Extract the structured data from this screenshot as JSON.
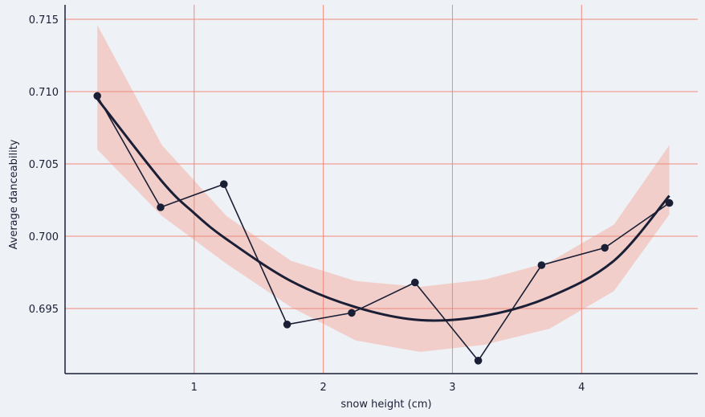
{
  "chart_data": {
    "type": "line",
    "xlabel": "snow height (cm)",
    "ylabel": "Average danceability",
    "x_ticks": [
      1,
      2,
      3,
      4
    ],
    "y_ticks": [
      0.695,
      0.7,
      0.705,
      0.71,
      0.715
    ],
    "y_tick_labels": [
      "0.695",
      "0.700",
      "0.705",
      "0.710",
      "0.715"
    ],
    "xlim": [
      0.0,
      4.9
    ],
    "ylim": [
      0.6905,
      0.716
    ],
    "grid": true,
    "series": [
      {
        "kind": "observed",
        "x": [
          0.25,
          0.74,
          1.23,
          1.72,
          2.22,
          2.71,
          3.2,
          3.69,
          4.18,
          4.68
        ],
        "y": [
          0.7097,
          0.702,
          0.7036,
          0.6939,
          0.6947,
          0.6968,
          0.6914,
          0.698,
          0.6992,
          0.7023
        ],
        "color": "#1a1f36"
      },
      {
        "kind": "fit",
        "x": [
          0.25,
          0.75,
          1.0,
          1.25,
          1.75,
          2.25,
          2.75,
          3.25,
          3.75,
          4.25,
          4.68
        ],
        "y": [
          0.7095,
          0.7038,
          0.7016,
          0.6998,
          0.6969,
          0.6951,
          0.6942,
          0.6945,
          0.6958,
          0.6983,
          0.7028
        ],
        "color": "#1a1f36"
      },
      {
        "kind": "confidence_band",
        "x": [
          0.25,
          0.75,
          1.25,
          1.75,
          2.25,
          2.75,
          3.25,
          3.75,
          4.25,
          4.68
        ],
        "upper": [
          0.7146,
          0.7063,
          0.7014,
          0.6983,
          0.6969,
          0.6965,
          0.697,
          0.6982,
          0.7008,
          0.7063
        ],
        "lower": [
          0.706,
          0.7014,
          0.6981,
          0.6951,
          0.6928,
          0.692,
          0.6925,
          0.6936,
          0.6962,
          0.7015
        ],
        "color": "#f4b7ac"
      }
    ],
    "colors": {
      "background": "#eef1f5",
      "grid": "#f08a7a",
      "axis": "#1a1f36",
      "line": "#1a1f36",
      "band": "#f4b7ac"
    }
  }
}
